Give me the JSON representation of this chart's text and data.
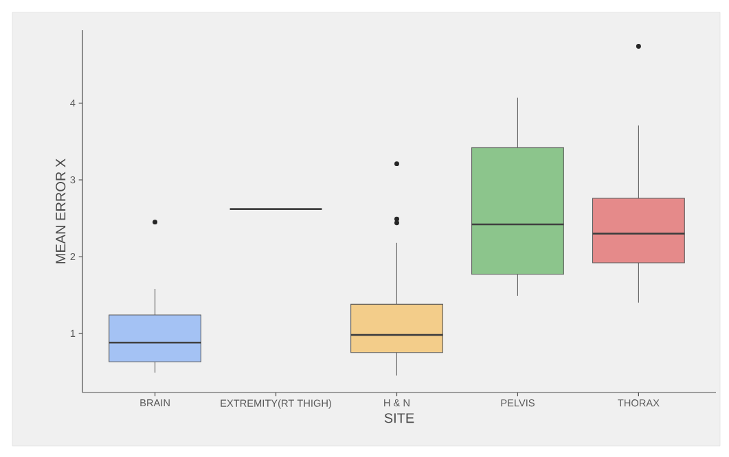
{
  "chart_data": {
    "type": "box",
    "xlabel": "SITE",
    "ylabel": "MEAN ERROR X",
    "categories": [
      "BRAIN",
      "EXTREMITY(RT THIGH)",
      "H & N",
      "PELVIS",
      "THORAX"
    ],
    "boxes": [
      {
        "low": 0.49,
        "q1": 0.63,
        "median": 0.88,
        "q3": 1.24,
        "high": 1.58,
        "outliers": [
          2.45
        ]
      },
      {
        "low": 2.62,
        "q1": 2.62,
        "median": 2.62,
        "q3": 2.62,
        "high": 2.62
      },
      {
        "low": 0.45,
        "q1": 0.75,
        "median": 0.98,
        "q3": 1.38,
        "high": 2.18,
        "outliers": [
          2.44,
          2.49,
          3.21
        ]
      },
      {
        "low": 1.49,
        "q1": 1.77,
        "median": 2.42,
        "q3": 3.42,
        "high": 4.07
      },
      {
        "low": 1.4,
        "q1": 1.92,
        "median": 2.3,
        "q3": 2.76,
        "high": 3.71,
        "outliers": [
          4.74
        ]
      }
    ],
    "colors": [
      "#a4c2f4",
      "#595959",
      "#f3cd8a",
      "#8cc58c",
      "#e58a8a"
    ],
    "ylim": [
      0.23,
      4.95
    ],
    "yticks": [
      1,
      2,
      3,
      4
    ],
    "grid": false
  }
}
